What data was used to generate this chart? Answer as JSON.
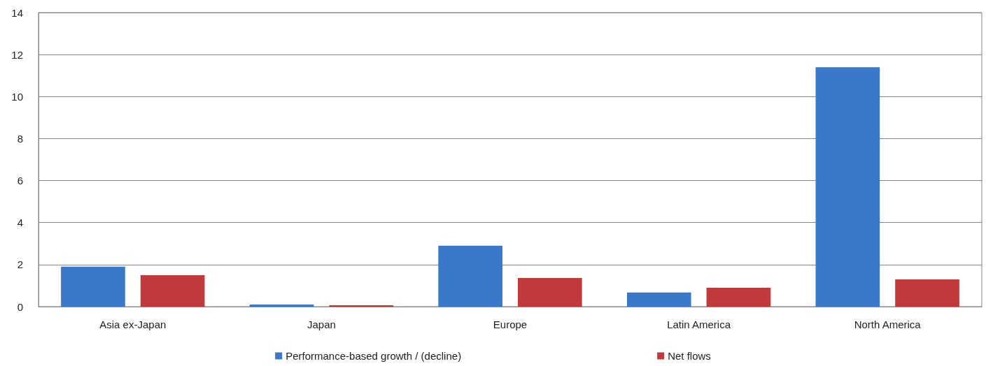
{
  "chart_data": {
    "type": "bar",
    "categories": [
      "Asia ex-Japan",
      "Japan",
      "Europe",
      "Latin America",
      "North America"
    ],
    "series": [
      {
        "name": "Performance-based growth / (decline)",
        "color": "#3a78c9",
        "values": [
          1.9,
          0.1,
          2.9,
          0.67,
          11.4
        ]
      },
      {
        "name": "Net flows",
        "color": "#c0393b",
        "values": [
          1.5,
          0.07,
          1.36,
          0.9,
          1.3
        ]
      }
    ],
    "ylim": [
      0,
      14
    ],
    "yticks": [
      0,
      2,
      4,
      6,
      8,
      10,
      12,
      14
    ],
    "grid": "y",
    "legend": "bottom"
  }
}
